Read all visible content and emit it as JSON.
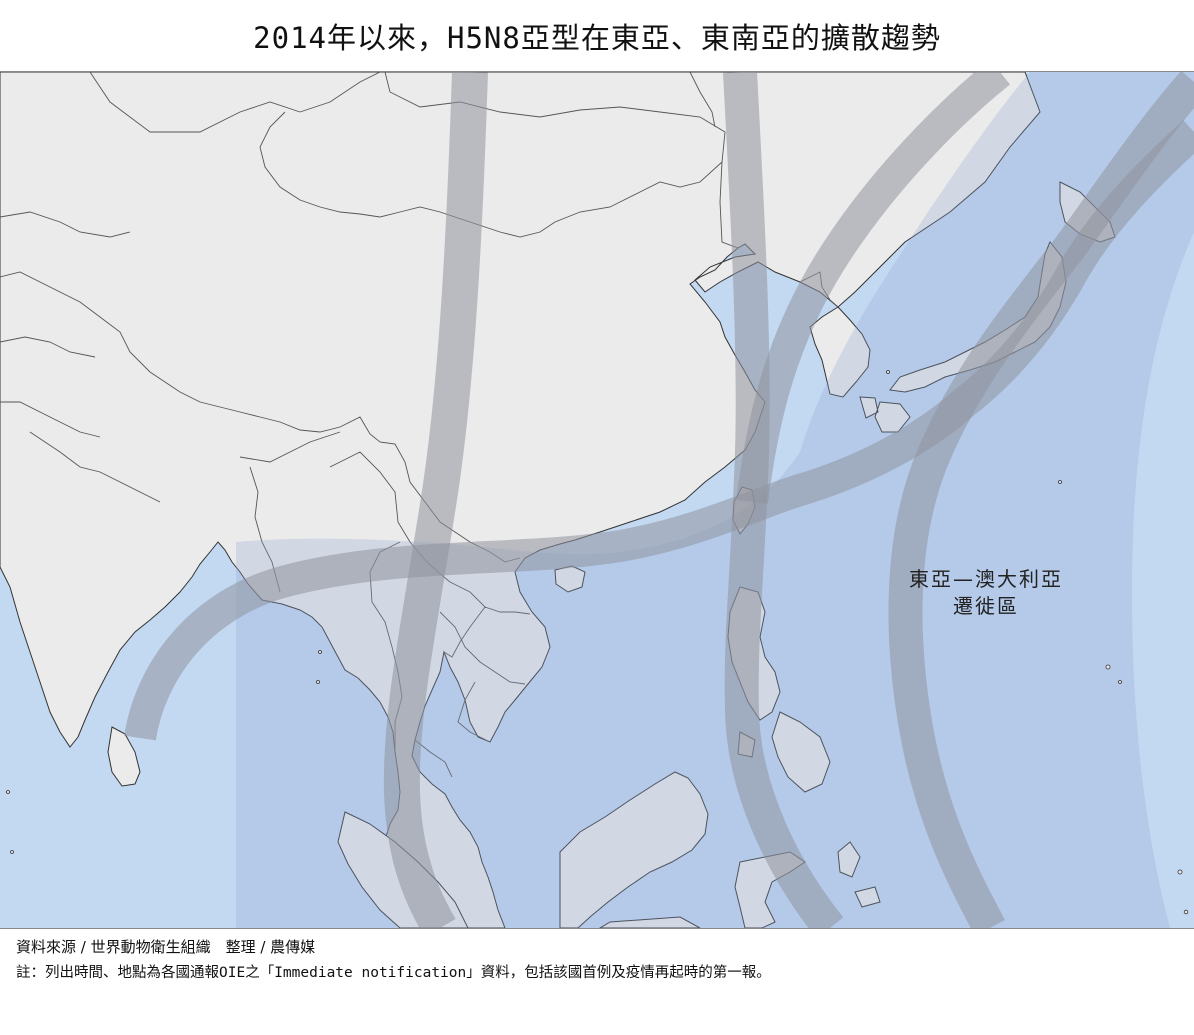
{
  "title": "2014年以來，H5N8亞型在東亞、東南亞的擴散趨勢",
  "map_label": {
    "line1": "東亞—澳大利亞",
    "line2": "遷徙區"
  },
  "footer": {
    "source": "資料來源 / 世界動物衛生組織　整理 / 農傳媒",
    "note": "註：列出時間、地點為各國通報OIE之「Immediate notification」資料，包括該國首例及疫情再起時的第一報。"
  },
  "colors": {
    "sea": "#c3d9f2",
    "land": "#ebebeb",
    "flyway_zone": "#a7bddb",
    "flyway_band": "#a2a7b1"
  }
}
